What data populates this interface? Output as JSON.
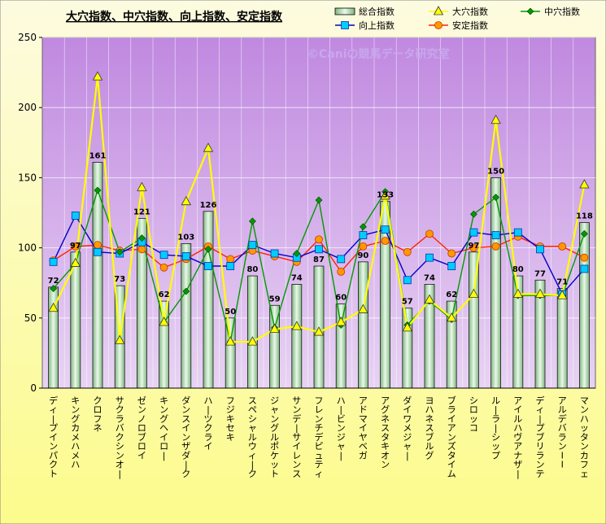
{
  "chart_data": {
    "type": "bar",
    "title": "大穴指数、中穴指数、向上指数、安定指数",
    "watermark": "©Caniの競馬データ研究室",
    "ylim": [
      0,
      250
    ],
    "yticks": [
      0,
      50,
      100,
      150,
      200,
      250
    ],
    "grid": true,
    "legend_position": "top-right",
    "categories": [
      "ディープインパクト",
      "キングカメハメハ",
      "クロフネ",
      "サクラバクシンオー",
      "ゼンノロブロイ",
      "キングヘイロー",
      "ダンスインザダーク",
      "ハーツクライ",
      "フジキセキ",
      "スペシャルウィーク",
      "ジャングルポケット",
      "サンデーサイレンス",
      "フレンチデピュティ",
      "ハービンジャー",
      "アドマイヤベガ",
      "アグネスタキオン",
      "ダイワメジャー",
      "ヨハネスブルグ",
      "ブライアンズタイム",
      "シロッコ",
      "ルーラーシップ",
      "アイルハヴアナザー",
      "ディープブリランテ",
      "アルデバランII",
      "マンハッタンカフェ"
    ],
    "series": [
      {
        "name": "総合指数",
        "kind": "bar",
        "color": "#c8ecc8",
        "values": [
          72,
          97,
          161,
          73,
          121,
          62,
          103,
          126,
          50,
          80,
          59,
          74,
          87,
          60,
          90,
          133,
          57,
          74,
          62,
          97,
          150,
          80,
          77,
          71,
          118
        ]
      },
      {
        "name": "大穴指数",
        "kind": "line",
        "color": "#ffff00",
        "marker": "triangle",
        "values": [
          57,
          89,
          222,
          34,
          143,
          47,
          133,
          171,
          33,
          33,
          42,
          44,
          40,
          47,
          56,
          137,
          43,
          63,
          50,
          67,
          191,
          67,
          67,
          66,
          145
        ]
      },
      {
        "name": "中穴指数",
        "kind": "line",
        "color": "#009900",
        "marker": "diamond",
        "values": [
          71,
          89,
          141,
          97,
          107,
          47,
          69,
          99,
          33,
          119,
          43,
          96,
          134,
          45,
          115,
          140,
          45,
          62,
          49,
          124,
          136,
          66,
          66,
          66,
          110
        ]
      },
      {
        "name": "向上指数",
        "kind": "line",
        "color": "#0000cc",
        "marker": "square",
        "values": [
          90,
          123,
          97,
          96,
          104,
          95,
          94,
          87,
          87,
          102,
          96,
          93,
          99,
          92,
          109,
          113,
          77,
          93,
          87,
          111,
          109,
          111,
          99,
          67,
          85
        ]
      },
      {
        "name": "安定指数",
        "kind": "line",
        "color": "#ff2200",
        "marker": "circle",
        "values": [
          91,
          101,
          102,
          98,
          99,
          86,
          92,
          101,
          92,
          98,
          94,
          90,
          106,
          83,
          101,
          105,
          97,
          110,
          96,
          100,
          101,
          108,
          101,
          101,
          93
        ]
      }
    ]
  }
}
